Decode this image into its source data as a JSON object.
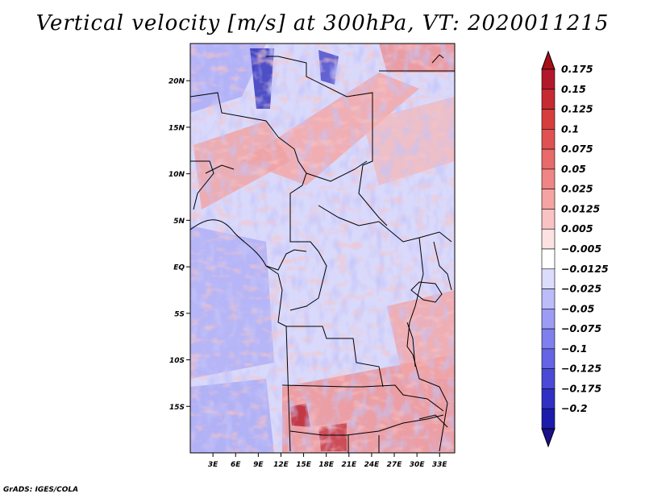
{
  "title": "Vertical velocity [m/s] at 300hPa, VT: 2020011215",
  "credit": "GrADS: IGES/COLA",
  "map": {
    "lon_range": [
      0,
      35
    ],
    "lat_range": [
      -20,
      24
    ],
    "lat_ticks": [
      {
        "value": 20,
        "label": "20N"
      },
      {
        "value": 15,
        "label": "15N"
      },
      {
        "value": 10,
        "label": "10N"
      },
      {
        "value": 5,
        "label": "5N"
      },
      {
        "value": 0,
        "label": "EQ"
      },
      {
        "value": -5,
        "label": "5S"
      },
      {
        "value": -10,
        "label": "10S"
      },
      {
        "value": -15,
        "label": "15S"
      }
    ],
    "lon_ticks": [
      {
        "value": 3,
        "label": "3E"
      },
      {
        "value": 6,
        "label": "6E"
      },
      {
        "value": 9,
        "label": "9E"
      },
      {
        "value": 12,
        "label": "12E"
      },
      {
        "value": 15,
        "label": "15E"
      },
      {
        "value": 18,
        "label": "18E"
      },
      {
        "value": 21,
        "label": "21E"
      },
      {
        "value": 24,
        "label": "24E"
      },
      {
        "value": 27,
        "label": "27E"
      },
      {
        "value": 30,
        "label": "30E"
      },
      {
        "value": 33,
        "label": "33E"
      }
    ]
  },
  "colorbar": {
    "top_color": "#a50f15",
    "bottom_color": "#1a0f8c",
    "entries": [
      {
        "label": "0.175",
        "color": "#b2182b"
      },
      {
        "label": "0.15",
        "color": "#c62a33"
      },
      {
        "label": "0.125",
        "color": "#d63d3d"
      },
      {
        "label": "0.1",
        "color": "#e05252"
      },
      {
        "label": "0.075",
        "color": "#e86a6a"
      },
      {
        "label": "0.05",
        "color": "#ef8585"
      },
      {
        "label": "0.025",
        "color": "#f5a3a3"
      },
      {
        "label": "0.0125",
        "color": "#f9c3c3"
      },
      {
        "label": "0.005",
        "color": "#fde2e2"
      },
      {
        "label": "−0.005",
        "color": "#ffffff"
      },
      {
        "label": "−0.0125",
        "color": "#dcdcfd"
      },
      {
        "label": "−0.025",
        "color": "#bcbcfa"
      },
      {
        "label": "−0.05",
        "color": "#9c9cf5"
      },
      {
        "label": "−0.075",
        "color": "#7f7fee"
      },
      {
        "label": "−0.1",
        "color": "#6464e4"
      },
      {
        "label": "−0.125",
        "color": "#4a4ad6"
      },
      {
        "label": "−0.175",
        "color": "#3030c2"
      },
      {
        "label": "−0.2",
        "color": "#1c1caa"
      }
    ]
  }
}
